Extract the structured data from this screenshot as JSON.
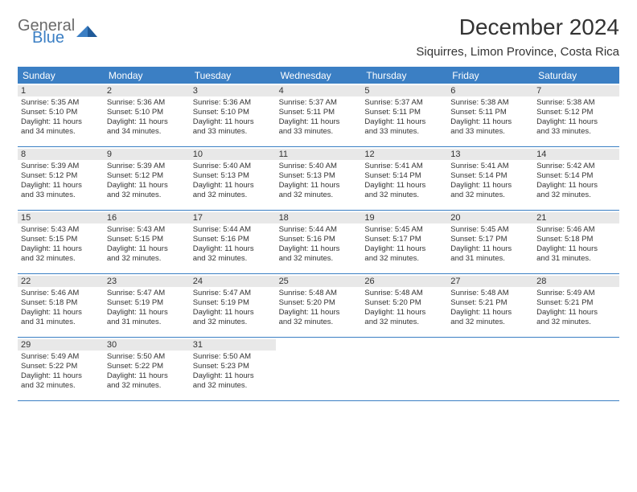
{
  "logo": {
    "text1": "General",
    "text2": "Blue",
    "accent": "#3b7fc4",
    "gray": "#6a6a6a"
  },
  "title": "December 2024",
  "location": "Siquirres, Limon Province, Costa Rica",
  "weekdays": [
    "Sunday",
    "Monday",
    "Tuesday",
    "Wednesday",
    "Thursday",
    "Friday",
    "Saturday"
  ],
  "colors": {
    "header_bg": "#3b7fc4",
    "header_text": "#ffffff",
    "daynum_bg": "#e8e8e8",
    "border": "#3b7fc4",
    "body_text": "#333333",
    "background": "#ffffff"
  },
  "typography": {
    "title_fontsize": 28,
    "location_fontsize": 15,
    "weekday_fontsize": 12,
    "daynum_fontsize": 11,
    "body_fontsize": 9.5
  },
  "weeks": [
    [
      {
        "n": "1",
        "sunrise": "Sunrise: 5:35 AM",
        "sunset": "Sunset: 5:10 PM",
        "day1": "Daylight: 11 hours",
        "day2": "and 34 minutes."
      },
      {
        "n": "2",
        "sunrise": "Sunrise: 5:36 AM",
        "sunset": "Sunset: 5:10 PM",
        "day1": "Daylight: 11 hours",
        "day2": "and 34 minutes."
      },
      {
        "n": "3",
        "sunrise": "Sunrise: 5:36 AM",
        "sunset": "Sunset: 5:10 PM",
        "day1": "Daylight: 11 hours",
        "day2": "and 33 minutes."
      },
      {
        "n": "4",
        "sunrise": "Sunrise: 5:37 AM",
        "sunset": "Sunset: 5:11 PM",
        "day1": "Daylight: 11 hours",
        "day2": "and 33 minutes."
      },
      {
        "n": "5",
        "sunrise": "Sunrise: 5:37 AM",
        "sunset": "Sunset: 5:11 PM",
        "day1": "Daylight: 11 hours",
        "day2": "and 33 minutes."
      },
      {
        "n": "6",
        "sunrise": "Sunrise: 5:38 AM",
        "sunset": "Sunset: 5:11 PM",
        "day1": "Daylight: 11 hours",
        "day2": "and 33 minutes."
      },
      {
        "n": "7",
        "sunrise": "Sunrise: 5:38 AM",
        "sunset": "Sunset: 5:12 PM",
        "day1": "Daylight: 11 hours",
        "day2": "and 33 minutes."
      }
    ],
    [
      {
        "n": "8",
        "sunrise": "Sunrise: 5:39 AM",
        "sunset": "Sunset: 5:12 PM",
        "day1": "Daylight: 11 hours",
        "day2": "and 33 minutes."
      },
      {
        "n": "9",
        "sunrise": "Sunrise: 5:39 AM",
        "sunset": "Sunset: 5:12 PM",
        "day1": "Daylight: 11 hours",
        "day2": "and 32 minutes."
      },
      {
        "n": "10",
        "sunrise": "Sunrise: 5:40 AM",
        "sunset": "Sunset: 5:13 PM",
        "day1": "Daylight: 11 hours",
        "day2": "and 32 minutes."
      },
      {
        "n": "11",
        "sunrise": "Sunrise: 5:40 AM",
        "sunset": "Sunset: 5:13 PM",
        "day1": "Daylight: 11 hours",
        "day2": "and 32 minutes."
      },
      {
        "n": "12",
        "sunrise": "Sunrise: 5:41 AM",
        "sunset": "Sunset: 5:14 PM",
        "day1": "Daylight: 11 hours",
        "day2": "and 32 minutes."
      },
      {
        "n": "13",
        "sunrise": "Sunrise: 5:41 AM",
        "sunset": "Sunset: 5:14 PM",
        "day1": "Daylight: 11 hours",
        "day2": "and 32 minutes."
      },
      {
        "n": "14",
        "sunrise": "Sunrise: 5:42 AM",
        "sunset": "Sunset: 5:14 PM",
        "day1": "Daylight: 11 hours",
        "day2": "and 32 minutes."
      }
    ],
    [
      {
        "n": "15",
        "sunrise": "Sunrise: 5:43 AM",
        "sunset": "Sunset: 5:15 PM",
        "day1": "Daylight: 11 hours",
        "day2": "and 32 minutes."
      },
      {
        "n": "16",
        "sunrise": "Sunrise: 5:43 AM",
        "sunset": "Sunset: 5:15 PM",
        "day1": "Daylight: 11 hours",
        "day2": "and 32 minutes."
      },
      {
        "n": "17",
        "sunrise": "Sunrise: 5:44 AM",
        "sunset": "Sunset: 5:16 PM",
        "day1": "Daylight: 11 hours",
        "day2": "and 32 minutes."
      },
      {
        "n": "18",
        "sunrise": "Sunrise: 5:44 AM",
        "sunset": "Sunset: 5:16 PM",
        "day1": "Daylight: 11 hours",
        "day2": "and 32 minutes."
      },
      {
        "n": "19",
        "sunrise": "Sunrise: 5:45 AM",
        "sunset": "Sunset: 5:17 PM",
        "day1": "Daylight: 11 hours",
        "day2": "and 32 minutes."
      },
      {
        "n": "20",
        "sunrise": "Sunrise: 5:45 AM",
        "sunset": "Sunset: 5:17 PM",
        "day1": "Daylight: 11 hours",
        "day2": "and 31 minutes."
      },
      {
        "n": "21",
        "sunrise": "Sunrise: 5:46 AM",
        "sunset": "Sunset: 5:18 PM",
        "day1": "Daylight: 11 hours",
        "day2": "and 31 minutes."
      }
    ],
    [
      {
        "n": "22",
        "sunrise": "Sunrise: 5:46 AM",
        "sunset": "Sunset: 5:18 PM",
        "day1": "Daylight: 11 hours",
        "day2": "and 31 minutes."
      },
      {
        "n": "23",
        "sunrise": "Sunrise: 5:47 AM",
        "sunset": "Sunset: 5:19 PM",
        "day1": "Daylight: 11 hours",
        "day2": "and 31 minutes."
      },
      {
        "n": "24",
        "sunrise": "Sunrise: 5:47 AM",
        "sunset": "Sunset: 5:19 PM",
        "day1": "Daylight: 11 hours",
        "day2": "and 32 minutes."
      },
      {
        "n": "25",
        "sunrise": "Sunrise: 5:48 AM",
        "sunset": "Sunset: 5:20 PM",
        "day1": "Daylight: 11 hours",
        "day2": "and 32 minutes."
      },
      {
        "n": "26",
        "sunrise": "Sunrise: 5:48 AM",
        "sunset": "Sunset: 5:20 PM",
        "day1": "Daylight: 11 hours",
        "day2": "and 32 minutes."
      },
      {
        "n": "27",
        "sunrise": "Sunrise: 5:48 AM",
        "sunset": "Sunset: 5:21 PM",
        "day1": "Daylight: 11 hours",
        "day2": "and 32 minutes."
      },
      {
        "n": "28",
        "sunrise": "Sunrise: 5:49 AM",
        "sunset": "Sunset: 5:21 PM",
        "day1": "Daylight: 11 hours",
        "day2": "and 32 minutes."
      }
    ],
    [
      {
        "n": "29",
        "sunrise": "Sunrise: 5:49 AM",
        "sunset": "Sunset: 5:22 PM",
        "day1": "Daylight: 11 hours",
        "day2": "and 32 minutes."
      },
      {
        "n": "30",
        "sunrise": "Sunrise: 5:50 AM",
        "sunset": "Sunset: 5:22 PM",
        "day1": "Daylight: 11 hours",
        "day2": "and 32 minutes."
      },
      {
        "n": "31",
        "sunrise": "Sunrise: 5:50 AM",
        "sunset": "Sunset: 5:23 PM",
        "day1": "Daylight: 11 hours",
        "day2": "and 32 minutes."
      },
      null,
      null,
      null,
      null
    ]
  ]
}
